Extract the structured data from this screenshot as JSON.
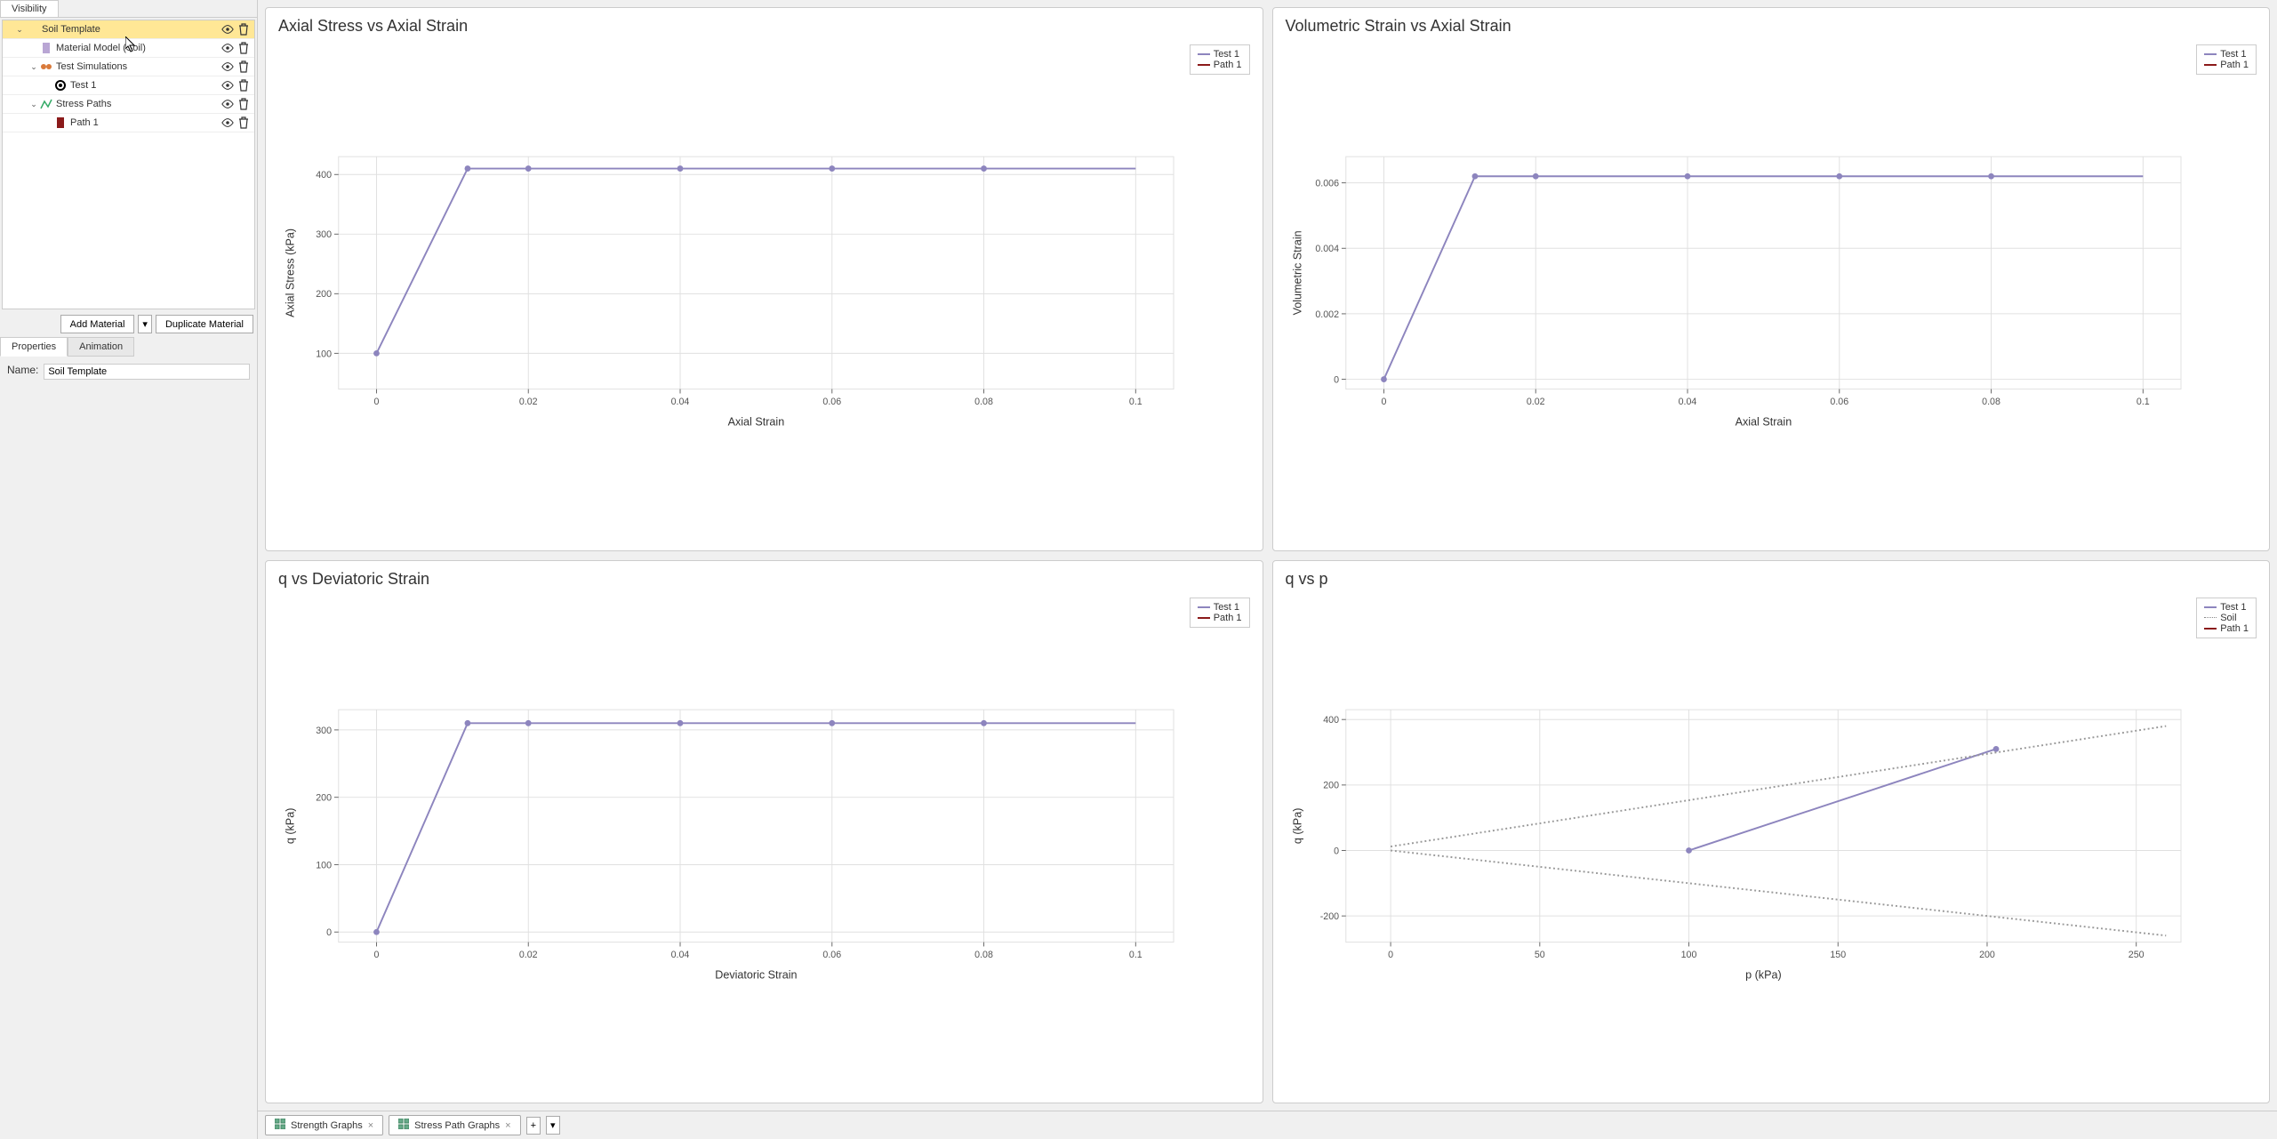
{
  "sidebar": {
    "tab": "Visibility",
    "tree": [
      {
        "label": "Soil Template",
        "indent": 0,
        "expanded": true,
        "selected": true,
        "icon": "none",
        "eye": true,
        "trash": true
      },
      {
        "label": "Material Model (Soil)",
        "indent": 1,
        "leaf": true,
        "icon": "bar",
        "eye": true,
        "trash": true,
        "iconColor": "#b9a6d4"
      },
      {
        "label": "Test Simulations",
        "indent": 1,
        "expanded": true,
        "icon": "sim",
        "eye": true,
        "trash": true
      },
      {
        "label": "Test 1",
        "indent": 2,
        "leaf": true,
        "icon": "circle",
        "eye": true,
        "trash": true
      },
      {
        "label": "Stress Paths",
        "indent": 1,
        "expanded": true,
        "icon": "path",
        "eye": true,
        "trash": true
      },
      {
        "label": "Path 1",
        "indent": 2,
        "leaf": true,
        "icon": "bar",
        "eye": true,
        "trash": true,
        "iconColor": "#8b1a1a"
      }
    ],
    "buttons": {
      "add": "Add Material",
      "dup": "Duplicate Material"
    }
  },
  "props": {
    "tabs": [
      "Properties",
      "Animation"
    ],
    "activeTab": 0,
    "nameLabel": "Name:",
    "nameValue": "Soil Template"
  },
  "legendLabels": {
    "test1": "Test 1",
    "path1": "Path 1",
    "soil": "Soil"
  },
  "colors": {
    "series": "#8d85be",
    "marker": "#8d85be",
    "path": "#8b1a1a",
    "soil_dash": "#999",
    "grid": "#e0e0e0",
    "axis": "#666",
    "text": "#555"
  },
  "charts": {
    "axial_stress": {
      "title": "Axial Stress vs Axial Strain",
      "xlabel": "Axial Strain",
      "ylabel": "Axial Stress (kPa)",
      "xlim": [
        -0.005,
        0.105
      ],
      "ylim": [
        40,
        430
      ],
      "xticks": [
        0,
        0.02,
        0.04,
        0.06,
        0.08,
        0.1
      ],
      "yticks": [
        100,
        200,
        300,
        400
      ],
      "series": [
        {
          "name": "Test 1",
          "color": "#8d85be",
          "points": [
            [
              0,
              100
            ],
            [
              0.012,
              410
            ],
            [
              0.02,
              410
            ],
            [
              0.04,
              410
            ],
            [
              0.06,
              410
            ],
            [
              0.08,
              410
            ],
            [
              0.1,
              410
            ]
          ],
          "markers_at": [
            [
              0,
              100
            ],
            [
              0.012,
              410
            ],
            [
              0.02,
              410
            ],
            [
              0.04,
              410
            ],
            [
              0.06,
              410
            ],
            [
              0.08,
              410
            ]
          ]
        }
      ],
      "legend": [
        "test1",
        "path1"
      ]
    },
    "vol_strain": {
      "title": "Volumetric Strain vs Axial Strain",
      "xlabel": "Axial Strain",
      "ylabel": "Volumetric Strain",
      "xlim": [
        -0.005,
        0.105
      ],
      "ylim": [
        -0.0003,
        0.0068
      ],
      "xticks": [
        0,
        0.02,
        0.04,
        0.06,
        0.08,
        0.1
      ],
      "yticks": [
        0,
        0.002,
        0.004,
        0.006
      ],
      "series": [
        {
          "name": "Test 1",
          "color": "#8d85be",
          "points": [
            [
              0,
              0
            ],
            [
              0.012,
              0.0062
            ],
            [
              0.02,
              0.0062
            ],
            [
              0.04,
              0.0062
            ],
            [
              0.06,
              0.0062
            ],
            [
              0.08,
              0.0062
            ],
            [
              0.1,
              0.0062
            ]
          ],
          "markers_at": [
            [
              0,
              0
            ],
            [
              0.012,
              0.0062
            ],
            [
              0.02,
              0.0062
            ],
            [
              0.04,
              0.0062
            ],
            [
              0.06,
              0.0062
            ],
            [
              0.08,
              0.0062
            ]
          ]
        }
      ],
      "legend": [
        "test1",
        "path1"
      ]
    },
    "q_dev": {
      "title": "q vs Deviatoric Strain",
      "xlabel": "Deviatoric Strain",
      "ylabel": "q (kPa)",
      "xlim": [
        -0.005,
        0.105
      ],
      "ylim": [
        -15,
        330
      ],
      "xticks": [
        0,
        0.02,
        0.04,
        0.06,
        0.08,
        0.1
      ],
      "yticks": [
        0,
        100,
        200,
        300
      ],
      "series": [
        {
          "name": "Test 1",
          "color": "#8d85be",
          "points": [
            [
              0,
              0
            ],
            [
              0.012,
              310
            ],
            [
              0.02,
              310
            ],
            [
              0.04,
              310
            ],
            [
              0.06,
              310
            ],
            [
              0.08,
              310
            ],
            [
              0.1,
              310
            ]
          ],
          "markers_at": [
            [
              0,
              0
            ],
            [
              0.012,
              310
            ],
            [
              0.02,
              310
            ],
            [
              0.04,
              310
            ],
            [
              0.06,
              310
            ],
            [
              0.08,
              310
            ]
          ]
        }
      ],
      "legend": [
        "test1",
        "path1"
      ]
    },
    "q_p": {
      "title": "q vs p",
      "xlabel": "p (kPa)",
      "ylabel": "q (kPa)",
      "xlim": [
        -15,
        265
      ],
      "ylim": [
        -280,
        430
      ],
      "xticks": [
        0,
        50,
        100,
        150,
        200,
        250
      ],
      "yticks": [
        -200,
        0,
        200,
        400
      ],
      "series": [
        {
          "name": "Test 1",
          "color": "#8d85be",
          "points": [
            [
              100,
              0
            ],
            [
              203,
              310
            ]
          ],
          "markers_at": [
            [
              100,
              0
            ],
            [
              203,
              310
            ]
          ]
        },
        {
          "name": "Soil_up",
          "color": "#999",
          "dash": true,
          "points": [
            [
              0,
              12
            ],
            [
              260,
              380
            ]
          ]
        },
        {
          "name": "Soil_dn",
          "color": "#999",
          "dash": true,
          "points": [
            [
              0,
              0
            ],
            [
              260,
              -260
            ]
          ]
        }
      ],
      "legend": [
        "test1",
        "soil",
        "path1"
      ]
    }
  },
  "bottomTabs": [
    {
      "label": "Strength Graphs",
      "icon": "grid"
    },
    {
      "label": "Stress Path Graphs",
      "icon": "grid4"
    }
  ]
}
